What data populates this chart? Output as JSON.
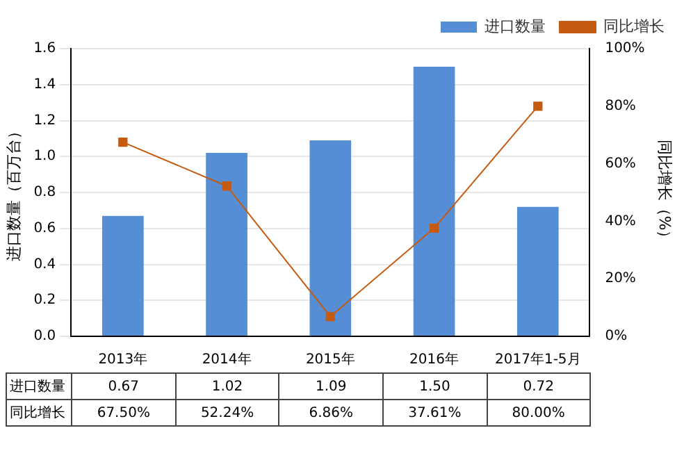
{
  "chart_data": {
    "type": "bar",
    "categories": [
      "2013年",
      "2014年",
      "2015年",
      "2016年",
      "2017年1-5月"
    ],
    "ylabel": "进口数量（百万台）",
    "y2label": "同比增长（%）",
    "series": [
      {
        "name": "进口数量",
        "color": "#558ed5",
        "values": [
          0.67,
          1.02,
          1.09,
          1.5,
          0.72
        ],
        "value_labels": [
          "0.67",
          "1.02",
          "1.09",
          "1.50",
          "0.72"
        ]
      },
      {
        "name": "同比增长",
        "type": "line",
        "axis": "y2",
        "color": "#c55a11",
        "marker": "square",
        "values": [
          67.5,
          52.24,
          6.86,
          37.61,
          80.0
        ],
        "value_labels": [
          "67.50%",
          "52.24%",
          "6.86%",
          "37.61%",
          "80.00%"
        ]
      }
    ],
    "ylim": [
      0,
      1.6
    ],
    "yticks": [
      {
        "value": 0,
        "label": "0.0"
      },
      {
        "value": 0.2,
        "label": "0.2"
      },
      {
        "value": 0.4,
        "label": "0.4"
      },
      {
        "value": 0.6,
        "label": "0.6"
      },
      {
        "value": 0.8,
        "label": "0.8"
      },
      {
        "value": 1,
        "label": "1.0"
      },
      {
        "value": 1.2,
        "label": "1.2"
      },
      {
        "value": 1.4,
        "label": "1.4"
      },
      {
        "value": 1.6,
        "label": "1.6"
      }
    ],
    "y2lim": [
      0,
      100
    ],
    "y2ticks": [
      {
        "value": 0,
        "label": "0%"
      },
      {
        "value": 20,
        "label": "20%"
      },
      {
        "value": 40,
        "label": "40%"
      },
      {
        "value": 60,
        "label": "60%"
      },
      {
        "value": 80,
        "label": "80%"
      },
      {
        "value": 100,
        "label": "100%"
      }
    ],
    "grid": "y",
    "legend": "top right"
  }
}
